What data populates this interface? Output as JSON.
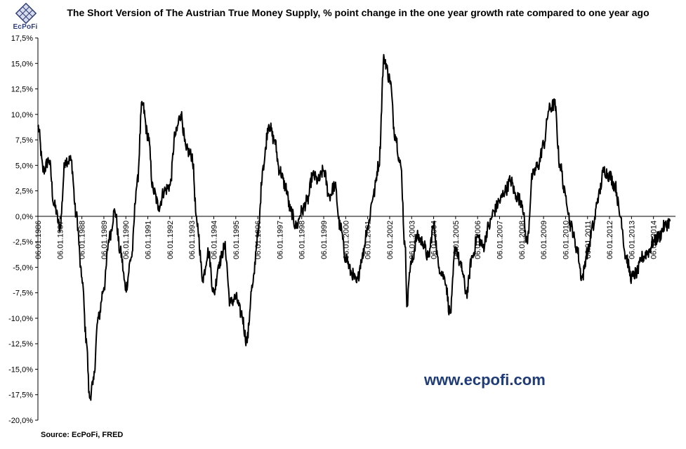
{
  "brand": {
    "logo_text": "EcPoFi",
    "watermark": "www.ecpofi.com",
    "source": "Source: EcPoFi,  FRED",
    "line_color": "#000000",
    "logo_color": "#2f3d7a",
    "watermark_color": "#1f3c78"
  },
  "chart_data": {
    "type": "line",
    "title": "The Short Version of The Austrian True Money Supply, % point change in the one year growth rate compared to one year ago",
    "xlabel": "",
    "ylabel": "",
    "ylim": [
      -20,
      17.5
    ],
    "y_ticks": [
      "17,5%",
      "15,0%",
      "12,5%",
      "10,0%",
      "7,5%",
      "5,0%",
      "2,5%",
      "0,0%",
      "-2,5%",
      "-5,0%",
      "-7,5%",
      "-10,0%",
      "-12,5%",
      "-15,0%",
      "-17,5%",
      "-20,0%"
    ],
    "x_ticks": [
      "06.01.1986",
      "06.01.1987",
      "06.01.1988",
      "06.01.1989",
      "06.01.1990",
      "06.01.1991",
      "06.01.1992",
      "06.01.1993",
      "06.01.1994",
      "06.01.1995",
      "06.01.1996",
      "06.01.1997",
      "06.01.1998",
      "06.01.1999",
      "06.01.2000",
      "06.01.2001",
      "06.01.2002",
      "06.01.2003",
      "06.01.2004",
      "06.01.2005",
      "06.01.2006",
      "06.01.2007",
      "06.01.2008",
      "06.01.2009",
      "06.01.2010",
      "06.01.2011",
      "06.01.2012",
      "06.01.2013",
      "06.01.2014"
    ],
    "grid": false,
    "legend": "none",
    "series": [
      {
        "x": [
          1986.0,
          1986.25,
          1986.5,
          1986.75,
          1987.0,
          1987.25,
          1987.5,
          1987.75,
          1988.0,
          1988.2,
          1988.35,
          1988.5,
          1988.75,
          1989.0,
          1989.25,
          1989.5,
          1989.75,
          1990.0,
          1990.25,
          1990.5,
          1990.75,
          1991.0,
          1991.25,
          1991.5,
          1991.75,
          1992.0,
          1992.25,
          1992.5,
          1992.75,
          1993.0,
          1993.25,
          1993.5,
          1993.75,
          1994.0,
          1994.25,
          1994.5,
          1994.75,
          1995.0,
          1995.25,
          1995.5,
          1995.75,
          1996.0,
          1996.25,
          1996.5,
          1996.75,
          1997.0,
          1997.25,
          1997.5,
          1997.75,
          1998.0,
          1998.25,
          1998.5,
          1998.75,
          1999.0,
          1999.25,
          1999.5,
          1999.75,
          2000.0,
          2000.25,
          2000.5,
          2000.75,
          2001.0,
          2001.25,
          2001.5,
          2001.75,
          2002.0,
          2002.25,
          2002.5,
          2002.7,
          2002.8,
          2002.9,
          2003.0,
          2003.25,
          2003.5,
          2003.75,
          2004.0,
          2004.25,
          2004.5,
          2004.75,
          2005.0,
          2005.25,
          2005.5,
          2005.75,
          2006.0,
          2006.25,
          2006.5,
          2006.75,
          2007.0,
          2007.25,
          2007.5,
          2007.75,
          2008.0,
          2008.25,
          2008.5,
          2008.75,
          2009.0,
          2009.25,
          2009.5,
          2009.75,
          2010.0,
          2010.25,
          2010.5,
          2010.75,
          2011.0,
          2011.25,
          2011.5,
          2011.75,
          2012.0,
          2012.25,
          2012.5,
          2012.75,
          2013.0,
          2013.25,
          2013.5,
          2013.75,
          2014.0,
          2014.25,
          2014.5,
          2014.75
        ],
        "values": [
          8.8,
          4.5,
          5.5,
          1.0,
          -1.0,
          5.5,
          5.5,
          0.0,
          -6.0,
          -12.0,
          -17.8,
          -16.5,
          -10.0,
          -7.0,
          -2.0,
          0.5,
          -3.5,
          -7.0,
          -4.0,
          3.0,
          11.0,
          8.0,
          2.5,
          1.0,
          2.5,
          3.0,
          8.0,
          10.0,
          6.5,
          6.0,
          -1.0,
          -6.0,
          -3.5,
          -7.5,
          -4.5,
          -3.0,
          -8.5,
          -8.0,
          -9.5,
          -12.2,
          -7.0,
          -2.0,
          5.0,
          9.0,
          7.5,
          4.5,
          3.0,
          0.5,
          -1.0,
          0.5,
          1.5,
          4.0,
          3.5,
          4.5,
          2.0,
          3.0,
          -1.0,
          -4.0,
          -5.5,
          -6.5,
          -4.0,
          -1.0,
          2.0,
          5.0,
          15.5,
          13.5,
          8.0,
          5.0,
          -3.0,
          -8.8,
          -5.5,
          -4.5,
          -2.0,
          -2.5,
          -4.0,
          -1.0,
          -5.0,
          -6.0,
          -9.5,
          -3.0,
          -5.0,
          -7.5,
          -4.0,
          -2.0,
          -3.0,
          -1.0,
          0.5,
          1.5,
          2.5,
          3.5,
          2.0,
          1.5,
          -2.5,
          4.0,
          5.0,
          7.0,
          10.5,
          11.0,
          5.0,
          2.0,
          -1.0,
          -3.0,
          -6.0,
          -3.5,
          -1.0,
          2.0,
          4.5,
          4.0,
          3.0,
          0.0,
          -4.0,
          -6.0,
          -5.5,
          -4.0,
          -3.5,
          -2.5,
          -2.0,
          -1.0,
          -0.5
        ]
      }
    ]
  }
}
